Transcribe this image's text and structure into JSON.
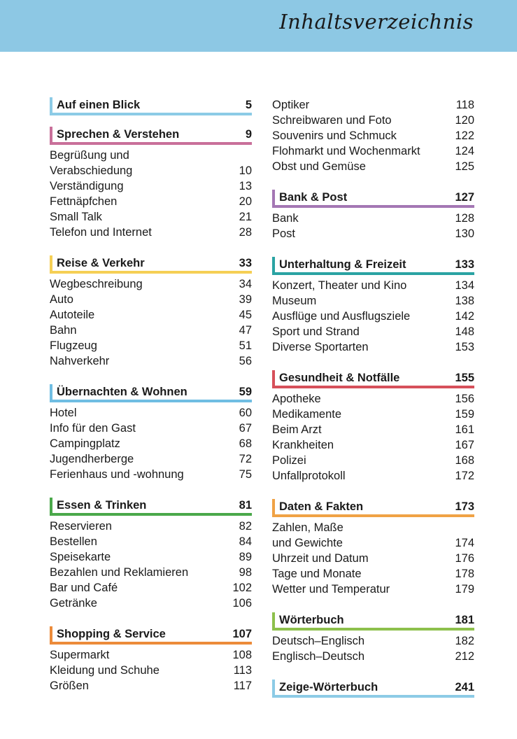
{
  "title": "Inhaltsverzeichnis",
  "header_color": "#8dc8e4",
  "columns": [
    [
      {
        "heading": "Auf einen Blick",
        "page": "5",
        "color": "#8ccbe6",
        "items": []
      },
      {
        "heading": "Sprechen & Verstehen",
        "page": "9",
        "color": "#c9709a",
        "items": [
          {
            "label": "Begrüßung und",
            "page": ""
          },
          {
            "label": "Verabschiedung",
            "page": "10"
          },
          {
            "label": "Verständigung",
            "page": "13"
          },
          {
            "label": "Fettnäpfchen",
            "page": "20"
          },
          {
            "label": "Small Talk",
            "page": "21"
          },
          {
            "label": "Telefon und Internet",
            "page": "28"
          }
        ]
      },
      {
        "heading": "Reise & Verkehr",
        "page": "33",
        "color": "#f5cf55",
        "items": [
          {
            "label": "Wegbeschreibung",
            "page": "34"
          },
          {
            "label": "Auto",
            "page": "39"
          },
          {
            "label": "Autoteile",
            "page": "45"
          },
          {
            "label": "Bahn",
            "page": "47"
          },
          {
            "label": "Flugzeug",
            "page": "51"
          },
          {
            "label": "Nahverkehr",
            "page": "56"
          }
        ]
      },
      {
        "heading": "Übernachten & Wohnen",
        "page": "59",
        "color": "#6fbde2",
        "items": [
          {
            "label": "Hotel",
            "page": "60"
          },
          {
            "label": "Info für den Gast",
            "page": "67"
          },
          {
            "label": "Campingplatz",
            "page": "68"
          },
          {
            "label": "Jugendherberge",
            "page": "72"
          },
          {
            "label": "Ferienhaus und -wohnung",
            "page": "75"
          }
        ]
      },
      {
        "heading": "Essen & Trinken",
        "page": "81",
        "color": "#4aa84a",
        "items": [
          {
            "label": "Reservieren",
            "page": "82"
          },
          {
            "label": "Bestellen",
            "page": "84"
          },
          {
            "label": "Speisekarte",
            "page": "89"
          },
          {
            "label": "Bezahlen und Reklamieren",
            "page": "98"
          },
          {
            "label": "Bar und Café",
            "page": "102"
          },
          {
            "label": "Getränke",
            "page": "106"
          }
        ]
      },
      {
        "heading": "Shopping & Service",
        "page": "107",
        "color": "#ec8b3a",
        "items": [
          {
            "label": "Supermarkt",
            "page": "108"
          },
          {
            "label": "Kleidung und Schuhe",
            "page": "113"
          },
          {
            "label": "Größen",
            "page": "117"
          }
        ]
      }
    ],
    [
      {
        "heading": "",
        "page": "",
        "color": "",
        "items": [
          {
            "label": "Optiker",
            "page": "118"
          },
          {
            "label": "Schreibwaren und Foto",
            "page": "120"
          },
          {
            "label": "Souvenirs und Schmuck",
            "page": "122"
          },
          {
            "label": "Flohmarkt und Wochenmarkt",
            "page": "124"
          },
          {
            "label": "Obst und Gemüse",
            "page": "125"
          }
        ]
      },
      {
        "heading": "Bank & Post",
        "page": "127",
        "color": "#a477b4",
        "items": [
          {
            "label": "Bank",
            "page": "128"
          },
          {
            "label": "Post",
            "page": "130"
          }
        ]
      },
      {
        "heading": "Unterhaltung & Freizeit",
        "page": "133",
        "color": "#2aa3a3",
        "items": [
          {
            "label": "Konzert, Theater und Kino",
            "page": "134"
          },
          {
            "label": "Museum",
            "page": "138"
          },
          {
            "label": "Ausflüge und Ausflugsziele",
            "page": "142"
          },
          {
            "label": "Sport und Strand",
            "page": "148"
          },
          {
            "label": "Diverse Sportarten",
            "page": "153"
          }
        ]
      },
      {
        "heading": "Gesundheit & Notfälle",
        "page": "155",
        "color": "#d6505a",
        "items": [
          {
            "label": "Apotheke",
            "page": "156"
          },
          {
            "label": "Medikamente",
            "page": "159"
          },
          {
            "label": "Beim Arzt",
            "page": "161"
          },
          {
            "label": "Krankheiten",
            "page": "167"
          },
          {
            "label": "Polizei",
            "page": "168"
          },
          {
            "label": "Unfallprotokoll",
            "page": "172"
          }
        ]
      },
      {
        "heading": "Daten & Fakten",
        "page": "173",
        "color": "#f0a245",
        "items": [
          {
            "label": "Zahlen, Maße",
            "page": ""
          },
          {
            "label": "und Gewichte",
            "page": "174"
          },
          {
            "label": "Uhrzeit und Datum",
            "page": "176"
          },
          {
            "label": "Tage und Monate",
            "page": "178"
          },
          {
            "label": "Wetter und Temperatur",
            "page": "179"
          }
        ]
      },
      {
        "heading": "Wörterbuch",
        "page": "181",
        "color": "#8dc04c",
        "items": [
          {
            "label": "Deutsch–Englisch",
            "page": "182"
          },
          {
            "label": "Englisch–Deutsch",
            "page": "212"
          }
        ]
      },
      {
        "heading": "Zeige-Wörterbuch",
        "page": "241",
        "color": "#8ccbe6",
        "items": []
      }
    ]
  ]
}
